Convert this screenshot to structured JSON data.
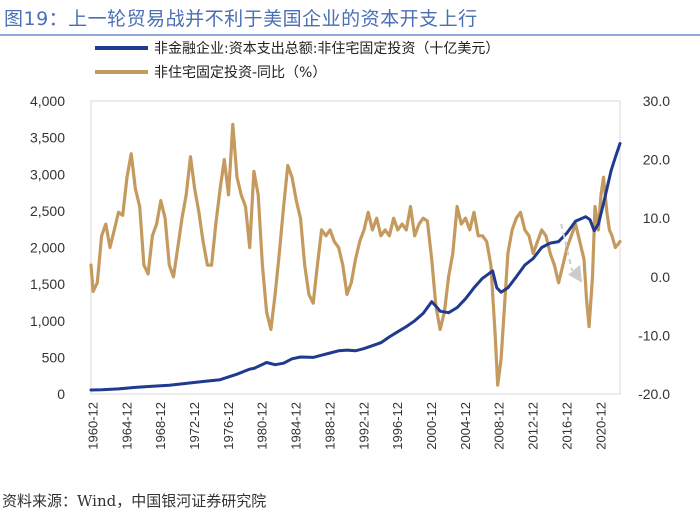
{
  "header": {
    "title": "图19：上一轮贸易战并不利于美国企业的资本开支上行"
  },
  "footer": {
    "source": "资料来源：Wind，中国银河证券研究院"
  },
  "chart_data": {
    "type": "line",
    "title": "",
    "xlabel": "",
    "x_ticks": [
      "1960-12",
      "1964-12",
      "1968-12",
      "1972-12",
      "1976-12",
      "1980-12",
      "1984-12",
      "1988-12",
      "1992-12",
      "1996-12",
      "2000-12",
      "2004-12",
      "2008-12",
      "2012-12",
      "2016-12",
      "2020-12"
    ],
    "x_range": [
      1960.75,
      2023.25
    ],
    "y_left": {
      "range": [
        0,
        4000
      ],
      "ticks": [
        "0",
        "500",
        "1,000",
        "1,500",
        "2,000",
        "2,500",
        "3,000",
        "3,500",
        "4,000"
      ]
    },
    "y_right": {
      "range": [
        -20,
        30
      ],
      "ticks": [
        "-20.0",
        "-10.0",
        "0.0",
        "10.0",
        "20.0",
        "30.0"
      ]
    },
    "legend_position": "top-left",
    "colors": {
      "capex": "#1f3a8f",
      "yoy": "#c49a5e",
      "arrow": "#cccccc"
    },
    "series": [
      {
        "name": "非金融企业:资本支出总额:非住宅固定投资（十亿美元）",
        "axis": "left",
        "points": [
          [
            1960.75,
            55
          ],
          [
            1962,
            58
          ],
          [
            1964,
            70
          ],
          [
            1966,
            90
          ],
          [
            1968,
            105
          ],
          [
            1970,
            120
          ],
          [
            1972,
            145
          ],
          [
            1974,
            170
          ],
          [
            1976,
            195
          ],
          [
            1978,
            270
          ],
          [
            1979.5,
            340
          ],
          [
            1980,
            350
          ],
          [
            1981.5,
            430
          ],
          [
            1982.5,
            400
          ],
          [
            1983.5,
            420
          ],
          [
            1984.5,
            480
          ],
          [
            1985.5,
            505
          ],
          [
            1987,
            500
          ],
          [
            1988,
            530
          ],
          [
            1989,
            560
          ],
          [
            1990,
            590
          ],
          [
            1991,
            600
          ],
          [
            1992,
            590
          ],
          [
            1993,
            620
          ],
          [
            1994,
            660
          ],
          [
            1995,
            700
          ],
          [
            1996,
            780
          ],
          [
            1997,
            850
          ],
          [
            1998,
            920
          ],
          [
            1999,
            1000
          ],
          [
            2000,
            1100
          ],
          [
            2001,
            1260
          ],
          [
            2001.5,
            1200
          ],
          [
            2002,
            1130
          ],
          [
            2003,
            1110
          ],
          [
            2004,
            1180
          ],
          [
            2005,
            1300
          ],
          [
            2006,
            1450
          ],
          [
            2007,
            1580
          ],
          [
            2008.2,
            1680
          ],
          [
            2008.7,
            1450
          ],
          [
            2009.2,
            1390
          ],
          [
            2010,
            1450
          ],
          [
            2011,
            1600
          ],
          [
            2012,
            1760
          ],
          [
            2013,
            1850
          ],
          [
            2014,
            2000
          ],
          [
            2015,
            2060
          ],
          [
            2016,
            2080
          ],
          [
            2017,
            2200
          ],
          [
            2018,
            2360
          ],
          [
            2019.2,
            2420
          ],
          [
            2019.7,
            2380
          ],
          [
            2020.2,
            2230
          ],
          [
            2020.7,
            2320
          ],
          [
            2021.2,
            2550
          ],
          [
            2021.7,
            2800
          ],
          [
            2022.2,
            3050
          ],
          [
            2022.7,
            3230
          ],
          [
            2023.25,
            3420
          ]
        ]
      },
      {
        "name": "非住宅固定投资-同比（%）",
        "axis": "right",
        "points": [
          [
            1960.75,
            2
          ],
          [
            1961,
            -2.5
          ],
          [
            1961.5,
            -1
          ],
          [
            1962,
            7
          ],
          [
            1962.5,
            9
          ],
          [
            1963,
            5
          ],
          [
            1963.5,
            8
          ],
          [
            1964,
            11
          ],
          [
            1964.5,
            10.5
          ],
          [
            1965,
            17
          ],
          [
            1965.5,
            21
          ],
          [
            1966,
            15
          ],
          [
            1966.5,
            12
          ],
          [
            1967,
            2
          ],
          [
            1967.5,
            0.5
          ],
          [
            1968,
            7
          ],
          [
            1968.5,
            9
          ],
          [
            1969,
            13
          ],
          [
            1969.5,
            10
          ],
          [
            1970,
            2
          ],
          [
            1970.5,
            0
          ],
          [
            1971,
            5
          ],
          [
            1971.5,
            10
          ],
          [
            1972,
            14
          ],
          [
            1972.5,
            20.5
          ],
          [
            1973,
            15
          ],
          [
            1973.5,
            11
          ],
          [
            1974,
            6
          ],
          [
            1974.5,
            2
          ],
          [
            1975,
            2
          ],
          [
            1975.5,
            9
          ],
          [
            1976,
            15
          ],
          [
            1976.5,
            20
          ],
          [
            1977,
            14
          ],
          [
            1977.5,
            26
          ],
          [
            1978,
            17
          ],
          [
            1978.5,
            14
          ],
          [
            1979,
            12
          ],
          [
            1979.5,
            5
          ],
          [
            1980,
            18
          ],
          [
            1980.5,
            14
          ],
          [
            1981,
            2
          ],
          [
            1981.5,
            -6
          ],
          [
            1982,
            -9
          ],
          [
            1982.5,
            -3
          ],
          [
            1983,
            4
          ],
          [
            1983.5,
            12
          ],
          [
            1984,
            19
          ],
          [
            1984.5,
            17
          ],
          [
            1985,
            13
          ],
          [
            1985.5,
            10
          ],
          [
            1986,
            2
          ],
          [
            1986.5,
            -3
          ],
          [
            1987,
            -4.5
          ],
          [
            1987.5,
            2
          ],
          [
            1988,
            8
          ],
          [
            1988.5,
            7
          ],
          [
            1989,
            8
          ],
          [
            1989.5,
            6
          ],
          [
            1990,
            5
          ],
          [
            1990.5,
            2
          ],
          [
            1991,
            -3
          ],
          [
            1991.5,
            -1
          ],
          [
            1992,
            3
          ],
          [
            1992.5,
            6
          ],
          [
            1993,
            8
          ],
          [
            1993.5,
            11
          ],
          [
            1994,
            8
          ],
          [
            1994.5,
            10
          ],
          [
            1995,
            7
          ],
          [
            1995.5,
            8
          ],
          [
            1996,
            7
          ],
          [
            1996.5,
            10
          ],
          [
            1997,
            8
          ],
          [
            1997.5,
            9
          ],
          [
            1998,
            8
          ],
          [
            1998.5,
            12
          ],
          [
            1999,
            7
          ],
          [
            1999.5,
            9
          ],
          [
            2000,
            10
          ],
          [
            2000.5,
            9.5
          ],
          [
            2001,
            3
          ],
          [
            2001.5,
            -5
          ],
          [
            2002,
            -9
          ],
          [
            2002.5,
            -6
          ],
          [
            2003,
            0
          ],
          [
            2003.5,
            4
          ],
          [
            2004,
            12
          ],
          [
            2004.5,
            9
          ],
          [
            2005,
            10
          ],
          [
            2005.5,
            8
          ],
          [
            2006,
            11
          ],
          [
            2006.5,
            7
          ],
          [
            2007,
            7
          ],
          [
            2007.5,
            6
          ],
          [
            2008,
            2
          ],
          [
            2008.5,
            -10
          ],
          [
            2008.8,
            -18.5
          ],
          [
            2009.2,
            -14
          ],
          [
            2009.6,
            -5
          ],
          [
            2010,
            4
          ],
          [
            2010.5,
            8
          ],
          [
            2011,
            10
          ],
          [
            2011.5,
            11
          ],
          [
            2012,
            8
          ],
          [
            2012.5,
            7
          ],
          [
            2013,
            4
          ],
          [
            2013.5,
            6
          ],
          [
            2014,
            8
          ],
          [
            2014.5,
            7
          ],
          [
            2015,
            4
          ],
          [
            2015.5,
            2
          ],
          [
            2016,
            -1
          ],
          [
            2016.5,
            2
          ],
          [
            2017,
            5
          ],
          [
            2017.5,
            7
          ],
          [
            2018,
            9
          ],
          [
            2018.5,
            6
          ],
          [
            2019,
            3
          ],
          [
            2019.3,
            -4
          ],
          [
            2019.6,
            -8.5
          ],
          [
            2020,
            0
          ],
          [
            2020.3,
            12
          ],
          [
            2020.7,
            8
          ],
          [
            2021,
            14
          ],
          [
            2021.3,
            17
          ],
          [
            2021.7,
            11
          ],
          [
            2022,
            8
          ],
          [
            2022.3,
            7
          ],
          [
            2022.7,
            5
          ],
          [
            2023.25,
            6
          ]
        ]
      }
    ],
    "annotations": [
      {
        "type": "arrow",
        "from": [
          2016.3,
          9
        ],
        "to": [
          2018.3,
          0
        ]
      }
    ]
  }
}
